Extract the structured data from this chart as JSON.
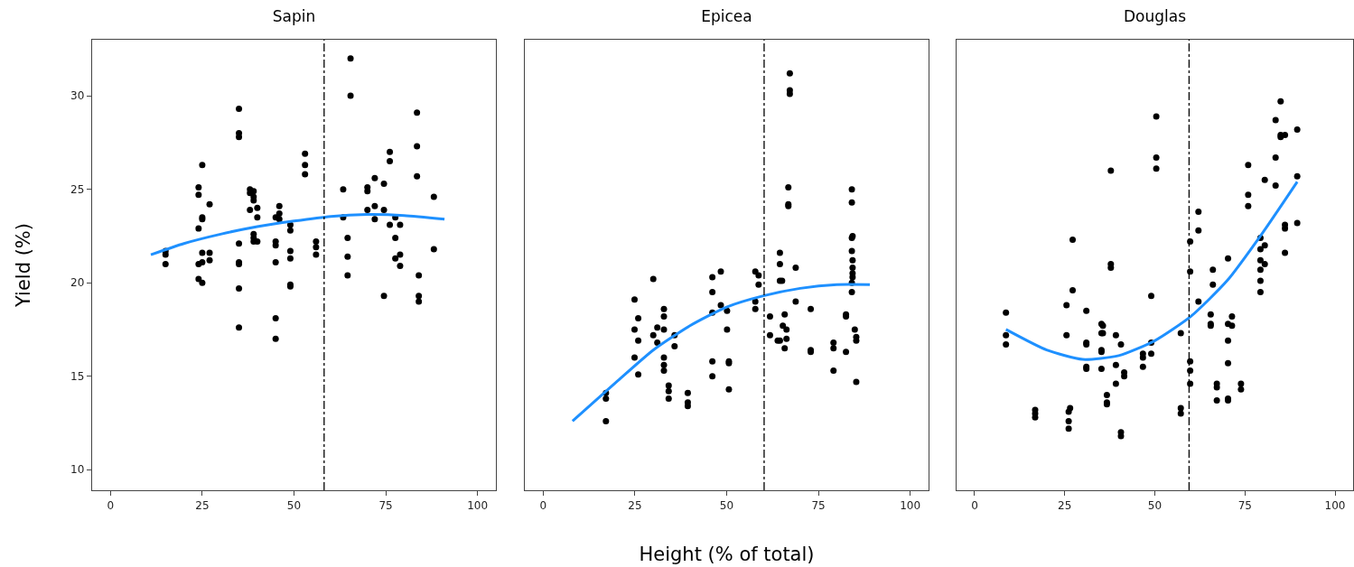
{
  "chart_data": [
    {
      "type": "scatter",
      "title": "Sapin",
      "ylabel": "Yield (%)",
      "xlim": [
        -5,
        105
      ],
      "ylim": [
        8.9,
        33
      ],
      "xticks": [
        0,
        25,
        50,
        75,
        100
      ],
      "yticks": [
        10,
        15,
        20,
        25,
        30
      ],
      "grid": false,
      "marker": "circle",
      "ref_lines": [
        {
          "axis": "x",
          "value": 58.2,
          "color": "#000000",
          "line_style": "dashdot"
        }
      ],
      "series": [
        {
          "type": "scatter",
          "color": "#000000",
          "x": [
            15,
            15,
            15,
            24,
            24,
            24,
            24,
            24,
            25,
            25,
            25,
            25,
            25,
            25,
            27,
            27,
            27,
            35,
            35,
            35,
            35,
            35,
            35,
            35,
            35,
            38,
            38,
            38,
            39,
            39,
            39,
            39,
            39,
            39,
            40,
            40,
            40,
            45,
            45,
            45,
            45,
            45,
            45,
            46,
            46,
            46,
            49,
            49,
            49,
            49,
            49,
            49,
            53,
            53,
            53,
            56,
            56,
            56,
            65.4,
            65.4,
            63.4,
            63.4,
            64.6,
            64.6,
            64.6,
            70,
            70,
            70,
            72,
            72,
            72,
            74.5,
            74.5,
            74.5,
            76.1,
            76.1,
            76.1,
            77.6,
            77.6,
            77.6,
            78.9,
            78.9,
            78.9,
            83.5,
            83.5,
            83.5,
            84,
            84,
            84,
            88.1,
            88.1
          ],
          "values": [
            21.7,
            21.5,
            21.0,
            25.1,
            24.7,
            22.9,
            21.0,
            20.2,
            26.3,
            23.5,
            23.4,
            21.6,
            21.1,
            20.0,
            24.2,
            21.6,
            21.2,
            29.3,
            28.0,
            27.8,
            22.1,
            21.1,
            21.0,
            19.7,
            17.6,
            25.0,
            24.8,
            23.9,
            24.9,
            24.6,
            24.4,
            22.6,
            22.4,
            22.2,
            24.0,
            23.5,
            22.2,
            23.5,
            22.0,
            22.2,
            21.1,
            18.1,
            17.0,
            24.1,
            23.7,
            23.4,
            23.1,
            22.8,
            21.7,
            21.3,
            19.9,
            19.8,
            26.9,
            26.3,
            25.8,
            22.2,
            21.9,
            21.5,
            32.0,
            30.0,
            25.0,
            23.5,
            22.4,
            21.4,
            20.4,
            25.1,
            24.9,
            23.9,
            25.6,
            24.1,
            23.4,
            25.3,
            23.9,
            19.3,
            27.0,
            26.5,
            23.1,
            23.5,
            22.4,
            21.3,
            23.1,
            21.5,
            20.9,
            29.1,
            27.3,
            25.7,
            20.4,
            19.3,
            19.0,
            24.6,
            21.8
          ]
        },
        {
          "type": "line",
          "color": "#1e90ff",
          "marker": "none",
          "x": [
            11,
            20,
            30,
            40,
            50,
            60,
            70,
            80,
            91
          ],
          "values": [
            21.5,
            22.1,
            22.6,
            23.0,
            23.3,
            23.55,
            23.65,
            23.6,
            23.4
          ]
        }
      ]
    },
    {
      "type": "scatter",
      "title": "Epicea",
      "xlabel": "Height (% of total)",
      "xlim": [
        -5,
        105
      ],
      "ylim": [
        8.9,
        33
      ],
      "xticks": [
        0,
        25,
        50,
        75,
        100
      ],
      "yticks": [
        10,
        15,
        20,
        25,
        30
      ],
      "grid": false,
      "marker": "circle",
      "tick_labels": "x",
      "ref_lines": [
        {
          "axis": "x",
          "value": 60.2,
          "color": "#000000",
          "line_style": "dashdot"
        }
      ],
      "series": [
        {
          "type": "scatter",
          "color": "#000000",
          "x": [
            17.1,
            17.1,
            17.1,
            24.9,
            24.9,
            24.9,
            25.9,
            25.9,
            25.9,
            30,
            30,
            31.1,
            31.1,
            32.9,
            32.9,
            32.9,
            32.9,
            32.9,
            32.9,
            34.2,
            34.2,
            34.2,
            35.8,
            35.8,
            39.4,
            39.4,
            39.4,
            46.1,
            46.1,
            46.1,
            46.1,
            46.1,
            48.4,
            48.4,
            50.1,
            50.1,
            50.6,
            50.6,
            50.6,
            57.8,
            58.7,
            58.7,
            57.8,
            57.8,
            61.8,
            61.8,
            64.5,
            64.5,
            64.5,
            65.1,
            65.8,
            65.3,
            66.3,
            66.3,
            63.9,
            64.5,
            65.8,
            67.2,
            67.2,
            67.2,
            66.8,
            66.8,
            66.8,
            68.8,
            68.8,
            72.9,
            72.9,
            72.9,
            79.1,
            79.1,
            79.1,
            82.5,
            82.5,
            82.5,
            84.1,
            84.1,
            84.1,
            84.3,
            84.1,
            84.3,
            84.3,
            84.3,
            84.3,
            84.1,
            84.1,
            84.9,
            85.3,
            85.3,
            85.3
          ],
          "values": [
            14.1,
            13.8,
            12.6,
            19.1,
            17.5,
            16.0,
            18.1,
            16.9,
            15.1,
            20.2,
            17.2,
            17.6,
            16.8,
            18.6,
            18.2,
            17.5,
            16.0,
            15.6,
            15.3,
            14.5,
            14.2,
            13.8,
            17.2,
            16.6,
            14.1,
            13.6,
            13.4,
            20.3,
            19.5,
            18.4,
            15.8,
            15.0,
            20.6,
            18.8,
            18.5,
            17.5,
            15.8,
            15.7,
            14.3,
            20.6,
            20.4,
            19.9,
            19.0,
            18.6,
            18.2,
            17.2,
            21.6,
            21.0,
            20.1,
            20.1,
            18.3,
            17.7,
            17.5,
            17.0,
            16.9,
            16.9,
            16.5,
            31.2,
            30.3,
            30.1,
            25.1,
            24.2,
            24.1,
            20.8,
            19.0,
            18.6,
            16.4,
            16.3,
            16.8,
            16.5,
            15.3,
            18.3,
            18.2,
            16.3,
            25.0,
            24.3,
            22.4,
            22.5,
            21.7,
            21.2,
            20.8,
            20.5,
            20.3,
            20.0,
            19.5,
            17.5,
            17.1,
            16.9,
            14.7
          ]
        },
        {
          "type": "line",
          "color": "#1e90ff",
          "marker": "none",
          "x": [
            8,
            20,
            30,
            40,
            50,
            60,
            70,
            80,
            89
          ],
          "values": [
            12.6,
            14.7,
            16.4,
            17.7,
            18.7,
            19.3,
            19.7,
            19.9,
            19.9
          ]
        }
      ]
    },
    {
      "type": "scatter",
      "title": "Douglas",
      "xlim": [
        -5,
        105
      ],
      "ylim": [
        8.9,
        33
      ],
      "xticks": [
        0,
        25,
        50,
        75,
        100
      ],
      "yticks": [
        10,
        15,
        20,
        25,
        30
      ],
      "grid": false,
      "marker": "circle",
      "tick_labels": "x",
      "ref_lines": [
        {
          "axis": "x",
          "value": 59.5,
          "color": "#000000",
          "line_style": "dashdot"
        }
      ],
      "series": [
        {
          "type": "scatter",
          "color": "#000000",
          "x": [
            8.7,
            8.7,
            8.7,
            16.8,
            16.8,
            16.8,
            25.5,
            25.5,
            26.1,
            26.5,
            26.1,
            26.1,
            27.2,
            27.2,
            31,
            31,
            31,
            31,
            31,
            35.2,
            35.6,
            35.2,
            35.6,
            35.2,
            35.2,
            35.2,
            37.8,
            37.8,
            37.8,
            39.2,
            39.2,
            39.2,
            36.7,
            36.7,
            36.7,
            40.6,
            40.6,
            40.6,
            41.5,
            41.5,
            46.7,
            46.7,
            46.7,
            49,
            49,
            49,
            50.4,
            50.4,
            50.4,
            57.2,
            57.2,
            57.2,
            59.8,
            59.8,
            59.8,
            59.8,
            59.8,
            62.1,
            62.1,
            62.1,
            66.1,
            66.1,
            65.5,
            65.5,
            65.5,
            67.2,
            67.2,
            67.2,
            70.3,
            70.3,
            71.4,
            71.4,
            70.3,
            70.3,
            70.3,
            70.3,
            73.9,
            73.9,
            75.9,
            75.9,
            75.9,
            79.3,
            79.3,
            79.3,
            79.3,
            79.3,
            79.3,
            80.5,
            80.5,
            80.5,
            83.5,
            83.5,
            83.5,
            84.9,
            84.9,
            84.9,
            86.1,
            86.1,
            86.1,
            86.1,
            89.5,
            89.5,
            89.5
          ],
          "values": [
            18.4,
            17.2,
            16.7,
            13.2,
            13.0,
            12.8,
            18.8,
            17.2,
            13.1,
            13.3,
            12.6,
            12.2,
            22.3,
            19.6,
            18.5,
            16.8,
            16.7,
            15.5,
            15.4,
            17.8,
            17.7,
            17.3,
            17.3,
            16.4,
            16.3,
            15.4,
            26.0,
            21.0,
            20.8,
            17.2,
            15.6,
            14.6,
            14.0,
            13.6,
            13.5,
            16.7,
            12.0,
            11.8,
            15.2,
            15.0,
            16.2,
            16.0,
            15.5,
            19.3,
            16.8,
            16.2,
            28.9,
            26.7,
            26.1,
            17.3,
            13.3,
            13.0,
            22.2,
            20.6,
            15.8,
            15.3,
            14.6,
            23.8,
            22.8,
            19.0,
            20.7,
            19.9,
            18.3,
            17.8,
            17.7,
            14.6,
            14.4,
            13.7,
            21.3,
            17.8,
            18.2,
            17.7,
            16.9,
            15.7,
            13.8,
            13.7,
            14.6,
            14.3,
            26.3,
            24.7,
            24.1,
            22.4,
            21.8,
            21.2,
            20.7,
            20.1,
            19.5,
            25.5,
            22.0,
            21.0,
            28.7,
            26.7,
            25.2,
            29.7,
            27.9,
            27.8,
            27.9,
            23.1,
            22.9,
            21.6,
            28.2,
            25.7,
            23.2
          ]
        },
        {
          "type": "line",
          "color": "#1e90ff",
          "marker": "none",
          "x": [
            8.7,
            20,
            30,
            40,
            50,
            60,
            70,
            80,
            89.5
          ],
          "values": [
            17.5,
            16.4,
            15.9,
            16.1,
            16.9,
            18.2,
            20.1,
            22.7,
            25.4
          ]
        }
      ]
    }
  ]
}
